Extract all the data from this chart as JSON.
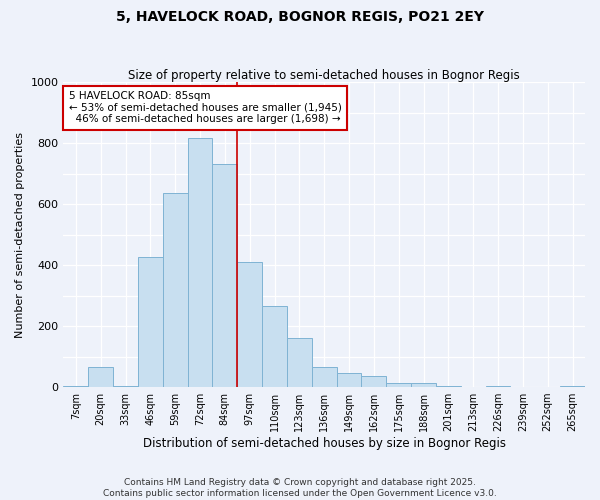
{
  "title": "5, HAVELOCK ROAD, BOGNOR REGIS, PO21 2EY",
  "subtitle": "Size of property relative to semi-detached houses in Bognor Regis",
  "xlabel": "Distribution of semi-detached houses by size in Bognor Regis",
  "ylabel": "Number of semi-detached properties",
  "categories": [
    "7sqm",
    "20sqm",
    "33sqm",
    "46sqm",
    "59sqm",
    "72sqm",
    "84sqm",
    "97sqm",
    "110sqm",
    "123sqm",
    "136sqm",
    "149sqm",
    "162sqm",
    "175sqm",
    "188sqm",
    "201sqm",
    "213sqm",
    "226sqm",
    "239sqm",
    "252sqm",
    "265sqm"
  ],
  "values": [
    5,
    65,
    5,
    425,
    635,
    815,
    730,
    410,
    265,
    160,
    65,
    45,
    35,
    15,
    15,
    5,
    0,
    5,
    0,
    0,
    5
  ],
  "bar_color": "#c8dff0",
  "bar_edge_color": "#7fb3d3",
  "red_line_index": 6,
  "annotation_text": "5 HAVELOCK ROAD: 85sqm\n← 53% of semi-detached houses are smaller (1,945)\n  46% of semi-detached houses are larger (1,698) →",
  "annotation_box_color": "#ffffff",
  "annotation_box_edge_color": "#cc0000",
  "ylim": [
    0,
    1000
  ],
  "yticks": [
    0,
    100,
    200,
    300,
    400,
    500,
    600,
    700,
    800,
    900,
    1000
  ],
  "footer_line1": "Contains HM Land Registry data © Crown copyright and database right 2025.",
  "footer_line2": "Contains public sector information licensed under the Open Government Licence v3.0.",
  "bg_color": "#eef2fa",
  "grid_color": "#ffffff"
}
